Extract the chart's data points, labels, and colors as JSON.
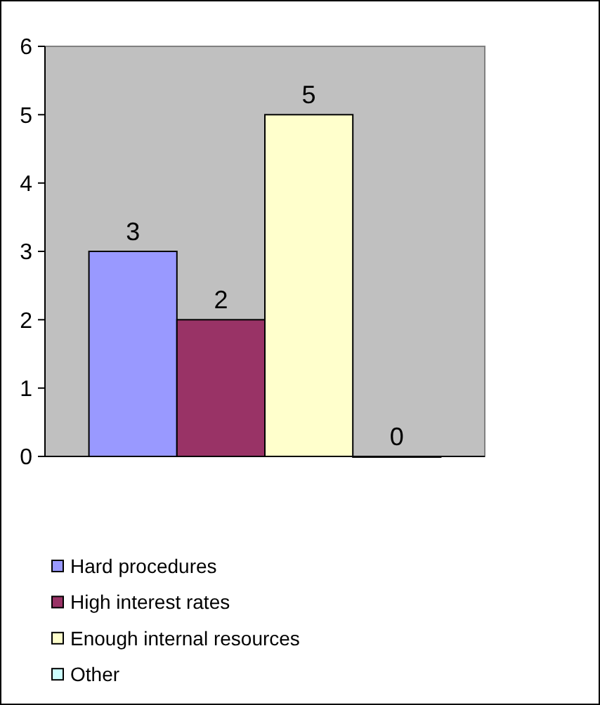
{
  "chart_data": {
    "type": "bar",
    "categories": [
      null
    ],
    "series": [
      {
        "name": "Hard procedures",
        "color": "#9999ff",
        "values": [
          3
        ]
      },
      {
        "name": "High interest rates",
        "color": "#993366",
        "values": [
          2
        ]
      },
      {
        "name": "Enough internal resources",
        "color": "#ffffcc",
        "values": [
          5
        ]
      },
      {
        "name": "Other",
        "color": "#ccffff",
        "values": [
          0
        ]
      }
    ],
    "ylim": [
      0,
      6
    ],
    "yticks": [
      0,
      1,
      2,
      3,
      4,
      5,
      6
    ],
    "grid": false,
    "legend": "bottom",
    "data_labels": true
  }
}
